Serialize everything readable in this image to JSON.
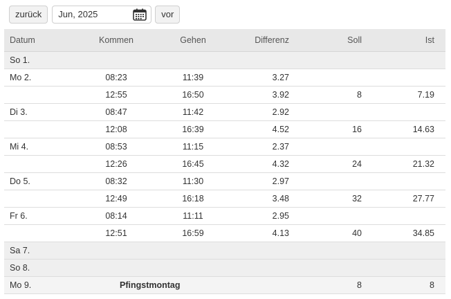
{
  "toolbar": {
    "prev_label": "zurück",
    "month_value": "Jun, 2025",
    "next_label": "vor",
    "calendar_icon": "calendar-icon"
  },
  "table": {
    "headers": {
      "date": "Datum",
      "in": "Kommen",
      "out": "Gehen",
      "diff": "Differenz",
      "soll": "Soll",
      "ist": "Ist"
    },
    "rows": [
      {
        "type": "weekend",
        "date": "So 1.",
        "in": "",
        "out": "",
        "diff": "",
        "soll": "",
        "ist": ""
      },
      {
        "type": "work",
        "date": "Mo 2.",
        "in": "08:23",
        "out": "11:39",
        "diff": "3.27",
        "soll": "",
        "ist": ""
      },
      {
        "type": "work",
        "date": "",
        "in": "12:55",
        "out": "16:50",
        "diff": "3.92",
        "soll": "8",
        "ist": "7.19"
      },
      {
        "type": "work",
        "date": "Di 3.",
        "in": "08:47",
        "out": "11:42",
        "diff": "2.92",
        "soll": "",
        "ist": ""
      },
      {
        "type": "work",
        "date": "",
        "in": "12:08",
        "out": "16:39",
        "diff": "4.52",
        "soll": "16",
        "ist": "14.63"
      },
      {
        "type": "work",
        "date": "Mi 4.",
        "in": "08:53",
        "out": "11:15",
        "diff": "2.37",
        "soll": "",
        "ist": ""
      },
      {
        "type": "work",
        "date": "",
        "in": "12:26",
        "out": "16:45",
        "diff": "4.32",
        "soll": "24",
        "ist": "21.32"
      },
      {
        "type": "work",
        "date": "Do 5.",
        "in": "08:32",
        "out": "11:30",
        "diff": "2.97",
        "soll": "",
        "ist": ""
      },
      {
        "type": "work",
        "date": "",
        "in": "12:49",
        "out": "16:18",
        "diff": "3.48",
        "soll": "32",
        "ist": "27.77"
      },
      {
        "type": "work",
        "date": "Fr 6.",
        "in": "08:14",
        "out": "11:11",
        "diff": "2.95",
        "soll": "",
        "ist": ""
      },
      {
        "type": "work",
        "date": "",
        "in": "12:51",
        "out": "16:59",
        "diff": "4.13",
        "soll": "40",
        "ist": "34.85"
      },
      {
        "type": "weekend",
        "date": "Sa 7.",
        "in": "",
        "out": "",
        "diff": "",
        "soll": "",
        "ist": ""
      },
      {
        "type": "weekend",
        "date": "So 8.",
        "in": "",
        "out": "",
        "diff": "",
        "soll": "",
        "ist": ""
      },
      {
        "type": "holiday",
        "date": "Mo 9.",
        "holiday": "Pfingstmontag",
        "soll": "8",
        "ist": "8"
      }
    ]
  }
}
